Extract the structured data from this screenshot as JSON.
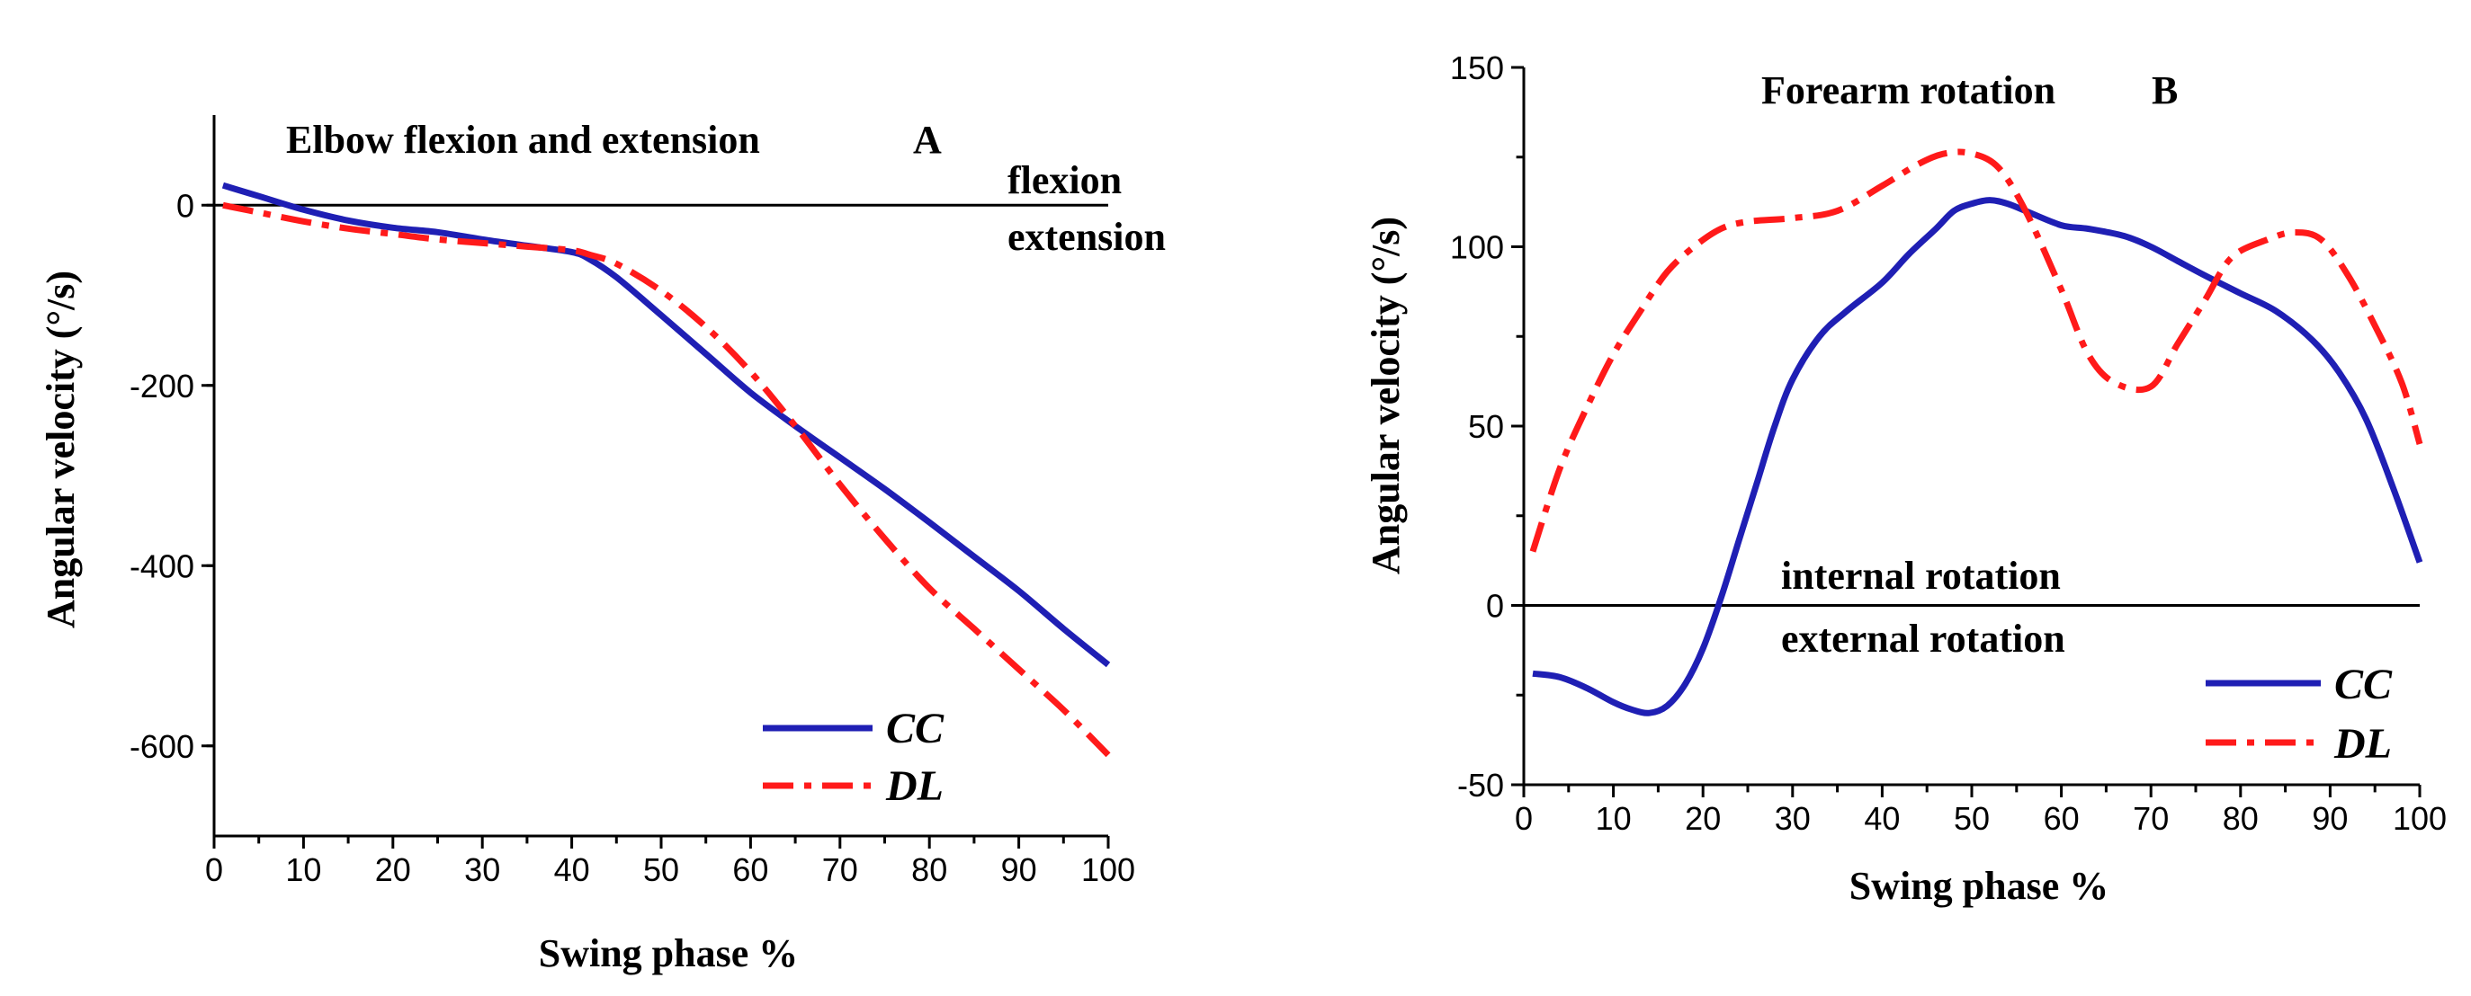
{
  "chart_data": [
    {
      "type": "line",
      "title": "Elbow flexion and extension",
      "panel_label": "A",
      "xlabel": "Swing phase %",
      "ylabel": "Angular velocity (°/s)",
      "xlim": [
        0,
        100
      ],
      "ylim": [
        -700,
        100
      ],
      "xticks": [
        0,
        10,
        20,
        30,
        40,
        50,
        60,
        70,
        80,
        90,
        100
      ],
      "yticks": [
        0,
        -200,
        -400,
        -600
      ],
      "annotations": {
        "above": "flexion",
        "below": "extension"
      },
      "series": [
        {
          "name": "CC",
          "color": "#1f1fb4",
          "style": "solid",
          "x": [
            1,
            5,
            10,
            15,
            20,
            25,
            30,
            35,
            40,
            42,
            45,
            50,
            55,
            60,
            65,
            70,
            75,
            80,
            85,
            90,
            95,
            100
          ],
          "y": [
            22,
            10,
            -5,
            -17,
            -25,
            -30,
            -38,
            -45,
            -52,
            -60,
            -80,
            -122,
            -165,
            -208,
            -245,
            -280,
            -315,
            -352,
            -390,
            -428,
            -470,
            -510
          ]
        },
        {
          "name": "DL",
          "color": "#ff1a1a",
          "style": "dashdot",
          "x": [
            1,
            5,
            10,
            15,
            20,
            25,
            30,
            35,
            40,
            42,
            45,
            50,
            55,
            60,
            65,
            70,
            75,
            80,
            85,
            90,
            95,
            100
          ],
          "y": [
            0,
            -8,
            -18,
            -26,
            -32,
            -38,
            -42,
            -46,
            -50,
            -55,
            -65,
            -95,
            -135,
            -185,
            -245,
            -310,
            -370,
            -425,
            -470,
            -515,
            -560,
            -610
          ]
        }
      ]
    },
    {
      "type": "line",
      "title": "Forearm  rotation",
      "panel_label": "B",
      "xlabel": "Swing phase %",
      "ylabel": "Angular velocity (°/s)",
      "xlim": [
        0,
        100
      ],
      "ylim": [
        -50,
        150
      ],
      "xticks": [
        0,
        10,
        20,
        30,
        40,
        50,
        60,
        70,
        80,
        90,
        100
      ],
      "yticks": [
        -50,
        0,
        50,
        100,
        150
      ],
      "annotations": {
        "above": "internal rotation",
        "below": "external rotation"
      },
      "series": [
        {
          "name": "CC",
          "color": "#1f1fb4",
          "style": "solid",
          "x": [
            1,
            4,
            7,
            10,
            12,
            14,
            16,
            18,
            20,
            22,
            24,
            26,
            28,
            30,
            33,
            36,
            40,
            43,
            46,
            48,
            50,
            52,
            54,
            56,
            60,
            63,
            67,
            70,
            73,
            76,
            80,
            84,
            88,
            91,
            94,
            97,
            100
          ],
          "y": [
            -19,
            -20,
            -23,
            -27,
            -29,
            -30,
            -28,
            -22,
            -12,
            2,
            18,
            34,
            50,
            63,
            75,
            82,
            90,
            98,
            105,
            110,
            112,
            113,
            112,
            110,
            106,
            105,
            103,
            100,
            96,
            92,
            87,
            82,
            74,
            65,
            52,
            33,
            12
          ]
        },
        {
          "name": "DL",
          "color": "#ff1a1a",
          "style": "dashdot",
          "x": [
            1,
            4,
            7,
            10,
            13,
            16,
            19,
            22,
            25,
            30,
            35,
            40,
            44,
            47,
            50,
            53,
            56,
            60,
            63,
            66,
            70,
            73,
            76,
            79,
            83,
            86,
            89,
            92,
            95,
            98,
            100
          ],
          "y": [
            15,
            38,
            55,
            70,
            82,
            93,
            100,
            105,
            107,
            108,
            110,
            117,
            123,
            126,
            126,
            122,
            110,
            88,
            70,
            62,
            61,
            73,
            85,
            97,
            102,
            104,
            102,
            92,
            78,
            62,
            45
          ]
        }
      ]
    }
  ]
}
